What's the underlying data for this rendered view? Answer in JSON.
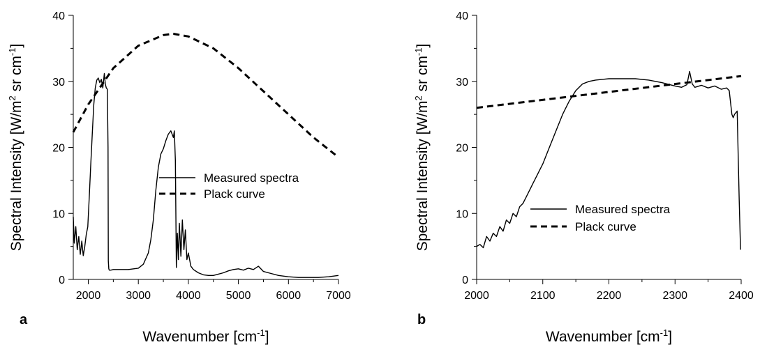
{
  "chart_data": [
    {
      "panel": "a",
      "type": "line",
      "xlabel": "Wavenumber [cm",
      "xlabel_sup": "-1",
      "xlabel_end": "]",
      "ylabel": "Spectral Intensity [W/m",
      "ylabel_sup1": "2",
      "ylabel_mid": " sr cm",
      "ylabel_sup2": "-1",
      "ylabel_end": "]",
      "xlim": [
        1700,
        7000
      ],
      "ylim": [
        0,
        40
      ],
      "xticks": [
        "2000",
        "3000",
        "4000",
        "5000",
        "6000",
        "7000"
      ],
      "yticks": [
        "0",
        "10",
        "20",
        "30",
        "40"
      ],
      "legend_position": "center-right",
      "series": [
        {
          "name": "Measured spectra",
          "style": "solid",
          "x": [
            1700,
            1720,
            1750,
            1780,
            1810,
            1840,
            1870,
            1900,
            1930,
            1960,
            1990,
            2020,
            2050,
            2080,
            2110,
            2140,
            2170,
            2200,
            2230,
            2260,
            2290,
            2320,
            2340,
            2360,
            2380,
            2395,
            2400,
            2410,
            2420,
            2450,
            2500,
            2600,
            2800,
            3000,
            3100,
            3200,
            3250,
            3300,
            3350,
            3400,
            3450,
            3500,
            3550,
            3600,
            3650,
            3700,
            3720,
            3740,
            3760,
            3780,
            3800,
            3820,
            3850,
            3880,
            3910,
            3940,
            3970,
            4000,
            4050,
            4100,
            4200,
            4300,
            4400,
            4500,
            4600,
            4700,
            4800,
            4900,
            5000,
            5100,
            5200,
            5300,
            5400,
            5500,
            5600,
            5800,
            6000,
            6200,
            6400,
            6600,
            6800,
            7000
          ],
          "y": [
            9.5,
            5.5,
            8.0,
            4.5,
            6.5,
            3.8,
            5.8,
            3.6,
            5.0,
            6.8,
            8.0,
            12.5,
            17.5,
            22.0,
            26.5,
            29.0,
            30.2,
            30.5,
            29.8,
            30.3,
            29.0,
            31.2,
            29.6,
            29.0,
            28.8,
            20.0,
            2.8,
            1.6,
            1.4,
            1.4,
            1.5,
            1.5,
            1.5,
            1.7,
            2.3,
            4.0,
            6.0,
            9.0,
            13.5,
            17.0,
            19.0,
            19.8,
            21.0,
            22.0,
            22.5,
            21.5,
            22.5,
            18.0,
            1.8,
            7.0,
            3.0,
            8.5,
            3.5,
            9.0,
            4.5,
            7.5,
            3.0,
            4.0,
            2.0,
            1.5,
            1.0,
            0.7,
            0.6,
            0.6,
            0.8,
            1.0,
            1.3,
            1.5,
            1.6,
            1.4,
            1.7,
            1.5,
            2.0,
            1.2,
            1.0,
            0.6,
            0.4,
            0.3,
            0.3,
            0.3,
            0.4,
            0.6
          ]
        },
        {
          "name": "Plack curve",
          "style": "dashed",
          "x": [
            1700,
            2000,
            2500,
            3000,
            3500,
            3700,
            4000,
            4500,
            5000,
            5500,
            6000,
            6500,
            7000
          ],
          "y": [
            22.3,
            26.5,
            32.0,
            35.4,
            37.0,
            37.2,
            36.8,
            35.0,
            32.0,
            28.5,
            25.0,
            21.5,
            18.5
          ]
        }
      ]
    },
    {
      "panel": "b",
      "type": "line",
      "xlabel": "Wavenumber [cm",
      "xlabel_sup": "-1",
      "xlabel_end": "]",
      "ylabel": "Spectral Intensity [W/m",
      "ylabel_sup1": "2",
      "ylabel_mid": " sr cm",
      "ylabel_sup2": "-1",
      "ylabel_end": "]",
      "xlim": [
        2000,
        2400
      ],
      "ylim": [
        0,
        40
      ],
      "xticks": [
        "2000",
        "2100",
        "2200",
        "2300",
        "2400"
      ],
      "yticks": [
        "0",
        "10",
        "20",
        "30",
        "40"
      ],
      "legend_position": "center",
      "series": [
        {
          "name": "Measured spectra",
          "style": "solid",
          "x": [
            2000,
            2005,
            2010,
            2015,
            2020,
            2025,
            2030,
            2035,
            2040,
            2045,
            2050,
            2055,
            2060,
            2065,
            2070,
            2075,
            2080,
            2085,
            2090,
            2095,
            2100,
            2110,
            2120,
            2130,
            2140,
            2150,
            2160,
            2170,
            2180,
            2190,
            2200,
            2220,
            2240,
            2260,
            2280,
            2300,
            2310,
            2318,
            2322,
            2326,
            2330,
            2340,
            2350,
            2360,
            2370,
            2378,
            2382,
            2386,
            2388,
            2390,
            2394,
            2397,
            2399
          ],
          "y": [
            5.0,
            5.3,
            4.8,
            6.5,
            5.8,
            7.0,
            6.5,
            8.0,
            7.3,
            9.0,
            8.5,
            10.0,
            9.5,
            11.0,
            11.5,
            12.5,
            13.5,
            14.5,
            15.5,
            16.5,
            17.5,
            20.0,
            22.5,
            25.0,
            27.0,
            28.6,
            29.6,
            30.0,
            30.2,
            30.3,
            30.4,
            30.4,
            30.4,
            30.2,
            29.8,
            29.3,
            29.1,
            29.5,
            31.5,
            29.6,
            29.1,
            29.4,
            29.0,
            29.3,
            28.8,
            29.0,
            28.6,
            25.0,
            24.5,
            25.0,
            25.5,
            12.0,
            4.5
          ]
        },
        {
          "name": "Plack curve",
          "style": "dashed",
          "x": [
            2000,
            2400
          ],
          "y": [
            26.0,
            30.8
          ]
        }
      ]
    }
  ]
}
